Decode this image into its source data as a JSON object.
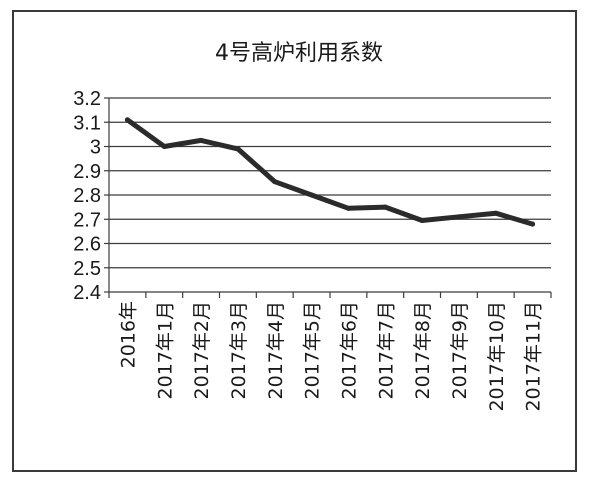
{
  "chart_data": {
    "type": "line",
    "title": "4号高炉利用系数",
    "xlabel": "",
    "ylabel": "",
    "categories": [
      "2016年",
      "2017年1月",
      "2017年2月",
      "2017年3月",
      "2017年4月",
      "2017年5月",
      "2017年6月",
      "2017年7月",
      "2017年8月",
      "2017年9月",
      "2017年10月",
      "2017年11月"
    ],
    "series": [
      {
        "values": [
          3.11,
          3.0,
          3.025,
          2.99,
          2.855,
          2.8,
          2.745,
          2.75,
          2.695,
          2.71,
          2.725,
          2.68
        ]
      }
    ],
    "ylim": [
      2.4,
      3.2
    ],
    "yticks": [
      "2.4",
      "2.5",
      "2.6",
      "2.7",
      "2.8",
      "2.9",
      "3",
      "3.1",
      "3.2"
    ],
    "grid": true,
    "legend": "none",
    "line_color": "#2b2b2b",
    "grid_color": "#3c3c3c"
  }
}
